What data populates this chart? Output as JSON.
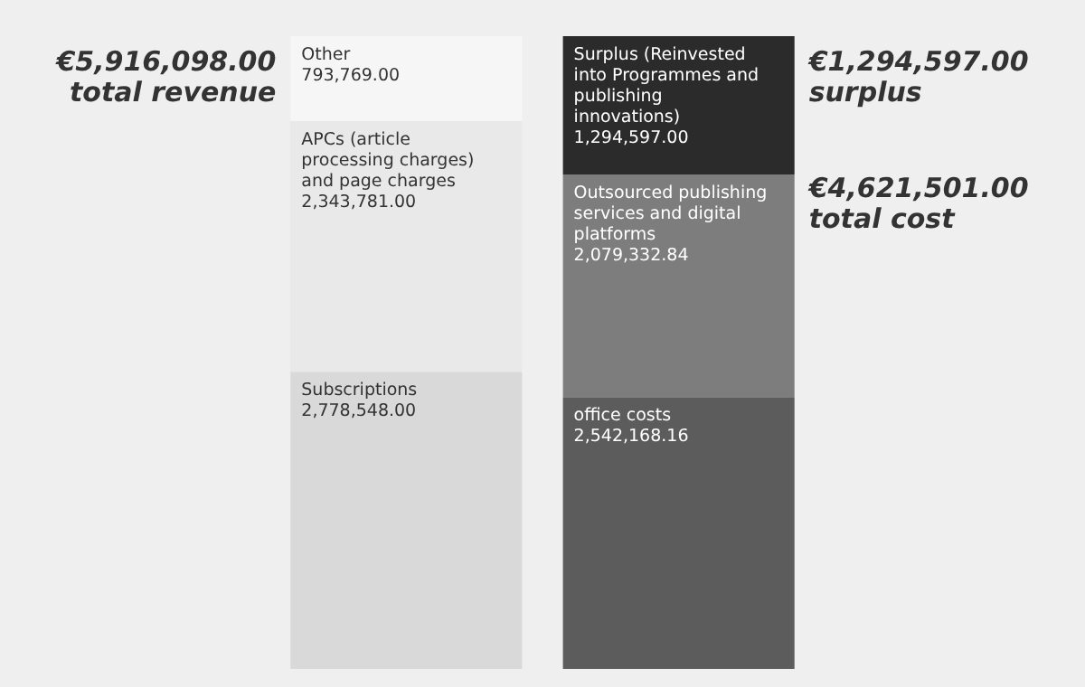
{
  "chart_data": {
    "type": "bar",
    "stacked": true,
    "categories": [
      null,
      null
    ],
    "tick_labels": false,
    "legend": false,
    "series": [
      {
        "name": "Subscriptions",
        "color": "#d9d9d9",
        "values": [
          2778548,
          null
        ],
        "value_labels": [
          "2,778,548.00",
          null
        ]
      },
      {
        "name": "APCs (article processing charges) and page charges",
        "color": "#e9e9e9",
        "values": [
          2343781,
          null
        ],
        "value_labels": [
          "2,343,781.00",
          null
        ]
      },
      {
        "name": "Other",
        "color": "#f6f6f6",
        "values": [
          793769,
          null
        ],
        "value_labels": [
          "793,769.00",
          null
        ]
      },
      {
        "name": "office costs",
        "color": "#5c5c5c",
        "values": [
          null,
          2542168.16
        ],
        "value_labels": [
          null,
          "2,542,168.16"
        ]
      },
      {
        "name": "Outsourced publishing services and digital platforms",
        "color": "#7d7d7d",
        "values": [
          null,
          2079332.84
        ],
        "value_labels": [
          null,
          "2,079,332.84"
        ]
      },
      {
        "name": "Surplus (Reinvested into Programmes and publishing innovations)",
        "color": "#2b2b2b",
        "values": [
          null,
          1294597
        ],
        "value_labels": [
          null,
          "1,294,597.00"
        ]
      }
    ],
    "annotations": [
      "€5,916,098.00\ntotal revenue",
      "€4,621,501.00\ntotal cost",
      "€1,294,597.00\nsurplus"
    ]
  }
}
